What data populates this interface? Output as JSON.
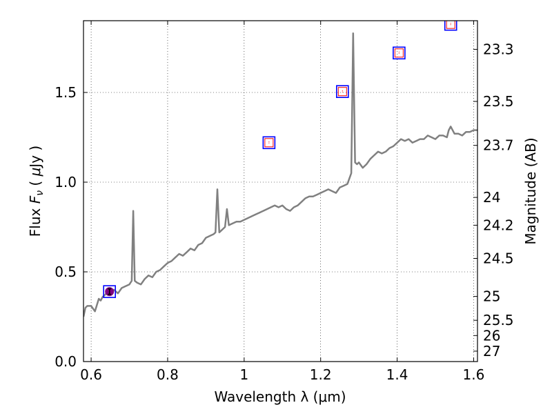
{
  "chart_data": {
    "type": "line",
    "xlabel": "Wavelength  λ (μm)",
    "ylabel_parts": [
      "Flux  ",
      "F",
      "ν",
      "  ( ",
      "μ",
      "Jy )"
    ],
    "y2label": "Magnitude (AB)",
    "xlim": [
      0.58,
      1.61
    ],
    "ylim": [
      0.0,
      1.9
    ],
    "grid": true,
    "x_ticks": [
      0.6,
      0.8,
      1.0,
      1.2,
      1.4,
      1.6
    ],
    "x_tick_labels": [
      "0.6",
      "0.8",
      "1",
      "1.2",
      "1.4",
      "1.6"
    ],
    "y_ticks": [
      0.0,
      0.5,
      1.0,
      1.5
    ],
    "y_tick_labels": [
      "0.0",
      "0.5",
      "1.0",
      "1.5"
    ],
    "y2_ticks": [
      {
        "label": "23.3",
        "flux": 1.74
      },
      {
        "label": "23.5",
        "flux": 1.45
      },
      {
        "label": "23.7",
        "flux": 1.205
      },
      {
        "label": "24",
        "flux": 0.915
      },
      {
        "label": "24.2",
        "flux": 0.76
      },
      {
        "label": "24.5",
        "flux": 0.575
      },
      {
        "label": "25",
        "flux": 0.363
      },
      {
        "label": "25.5",
        "flux": 0.23
      },
      {
        "label": "26",
        "flux": 0.145
      },
      {
        "label": "27",
        "flux": 0.058
      }
    ],
    "series": [
      {
        "kind": "line",
        "color": "#808080",
        "x": [
          0.58,
          0.585,
          0.59,
          0.6,
          0.61,
          0.62,
          0.625,
          0.63,
          0.64,
          0.65,
          0.66,
          0.67,
          0.68,
          0.69,
          0.7,
          0.706,
          0.71,
          0.714,
          0.72,
          0.73,
          0.74,
          0.75,
          0.76,
          0.77,
          0.78,
          0.79,
          0.8,
          0.81,
          0.82,
          0.83,
          0.84,
          0.85,
          0.86,
          0.87,
          0.88,
          0.89,
          0.9,
          0.91,
          0.92,
          0.925,
          0.93,
          0.935,
          0.94,
          0.95,
          0.955,
          0.96,
          0.97,
          0.98,
          0.99,
          1.0,
          1.01,
          1.02,
          1.03,
          1.04,
          1.05,
          1.06,
          1.07,
          1.08,
          1.09,
          1.1,
          1.11,
          1.12,
          1.13,
          1.14,
          1.15,
          1.16,
          1.17,
          1.18,
          1.19,
          1.2,
          1.21,
          1.22,
          1.23,
          1.24,
          1.25,
          1.26,
          1.27,
          1.28,
          1.285,
          1.29,
          1.295,
          1.3,
          1.31,
          1.32,
          1.33,
          1.34,
          1.35,
          1.36,
          1.37,
          1.38,
          1.39,
          1.4,
          1.41,
          1.42,
          1.43,
          1.44,
          1.45,
          1.46,
          1.47,
          1.48,
          1.49,
          1.5,
          1.51,
          1.52,
          1.53,
          1.535,
          1.54,
          1.55,
          1.56,
          1.57,
          1.58,
          1.59,
          1.6,
          1.61
        ],
        "y": [
          0.25,
          0.3,
          0.31,
          0.31,
          0.28,
          0.35,
          0.34,
          0.36,
          0.38,
          0.4,
          0.4,
          0.38,
          0.41,
          0.42,
          0.43,
          0.45,
          0.84,
          0.45,
          0.44,
          0.43,
          0.46,
          0.48,
          0.47,
          0.5,
          0.51,
          0.53,
          0.55,
          0.56,
          0.58,
          0.6,
          0.59,
          0.61,
          0.63,
          0.62,
          0.65,
          0.66,
          0.69,
          0.7,
          0.71,
          0.72,
          0.96,
          0.72,
          0.73,
          0.75,
          0.85,
          0.76,
          0.77,
          0.78,
          0.78,
          0.79,
          0.8,
          0.81,
          0.82,
          0.83,
          0.84,
          0.85,
          0.86,
          0.87,
          0.86,
          0.87,
          0.85,
          0.84,
          0.86,
          0.87,
          0.89,
          0.91,
          0.92,
          0.92,
          0.93,
          0.94,
          0.95,
          0.96,
          0.95,
          0.94,
          0.97,
          0.98,
          0.99,
          1.05,
          1.83,
          1.11,
          1.1,
          1.11,
          1.08,
          1.1,
          1.13,
          1.15,
          1.17,
          1.16,
          1.17,
          1.19,
          1.2,
          1.22,
          1.24,
          1.23,
          1.24,
          1.22,
          1.23,
          1.24,
          1.24,
          1.26,
          1.25,
          1.24,
          1.26,
          1.26,
          1.25,
          1.29,
          1.31,
          1.27,
          1.27,
          1.26,
          1.28,
          1.28,
          1.29,
          1.29
        ]
      },
      {
        "kind": "points",
        "x": [
          0.648,
          1.065,
          1.257,
          1.405,
          1.54
        ],
        "y": [
          0.39,
          1.22,
          1.505,
          1.72,
          1.88
        ],
        "outer_color": "#0000ff",
        "inner_color": "#ff0000",
        "highlight_color": "#800080"
      }
    ]
  }
}
